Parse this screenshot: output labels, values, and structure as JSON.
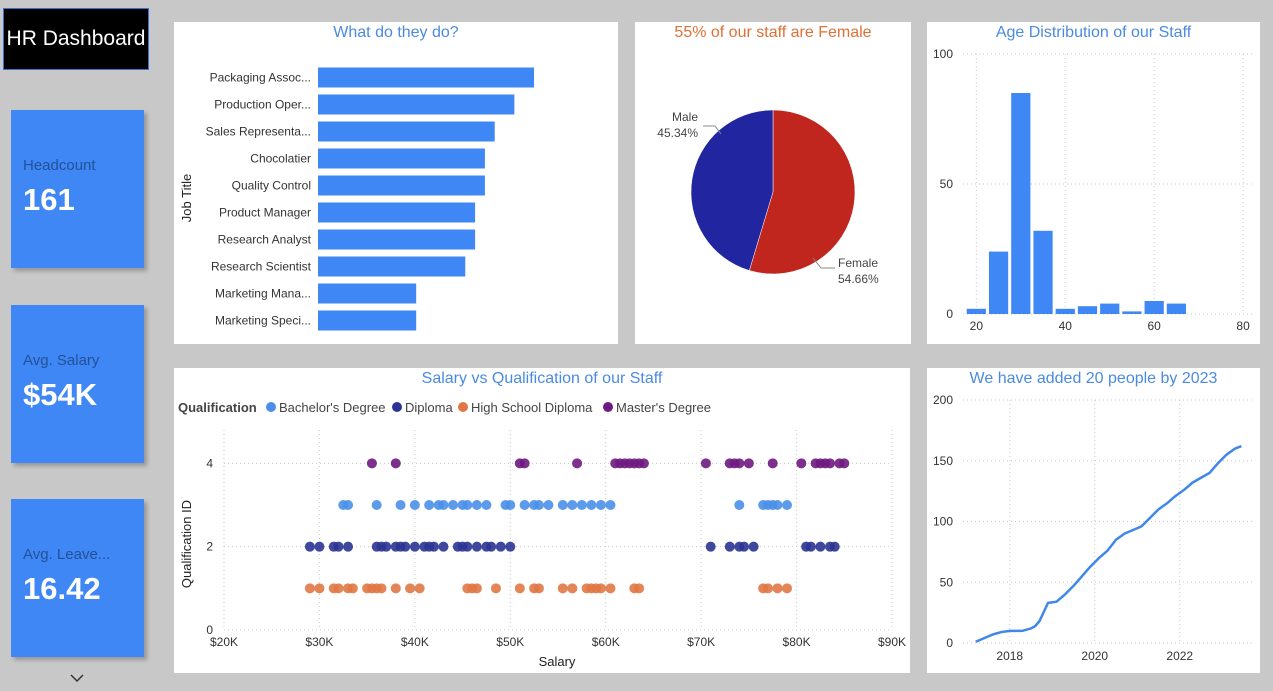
{
  "dashboard_title": "HR Dashboard",
  "kpis": [
    {
      "label": "Headcount",
      "value": "161"
    },
    {
      "label": "Avg. Salary",
      "value": "$54K"
    },
    {
      "label": "Avg. Leave...",
      "value": "16.42"
    }
  ],
  "colors": {
    "accent": "#3f87f5",
    "female": "#c0251e",
    "male": "#2126a0",
    "bachelor": "#4a90e8",
    "diploma": "#2b3494",
    "highschool": "#e07845",
    "master": "#6f1a80"
  },
  "chart_data": [
    {
      "type": "bar",
      "orientation": "horizontal",
      "title": "What do they do?",
      "ylabel": "Job Title",
      "categories": [
        "Packaging Assoc...",
        "Production Oper...",
        "Sales Representa...",
        "Chocolatier",
        "Quality Control",
        "Product Manager",
        "Research Analyst",
        "Research Scientist",
        "Marketing Mana...",
        "Marketing Speci..."
      ],
      "values": [
        22,
        20,
        18,
        17,
        17,
        16,
        16,
        15,
        10,
        10
      ],
      "xlim": [
        0,
        22
      ]
    },
    {
      "type": "pie",
      "title": "55% of our staff are Female",
      "slices": [
        {
          "label": "Female",
          "value": 54.66,
          "pct_label": "54.66%"
        },
        {
          "label": "Male",
          "value": 45.34,
          "pct_label": "45.34%"
        }
      ]
    },
    {
      "type": "bar",
      "title": "Age Distribution of our Staff",
      "x": [
        20,
        25,
        30,
        35,
        40,
        45,
        50,
        55,
        60,
        65
      ],
      "values": [
        2,
        24,
        85,
        32,
        2,
        3,
        4,
        1,
        5,
        4
      ],
      "bin_width": 5,
      "xlim": [
        17,
        82
      ],
      "ylim": [
        0,
        100
      ],
      "xticks": [
        "20",
        "40",
        "60",
        "80"
      ],
      "yticks": [
        "0",
        "50",
        "100"
      ]
    },
    {
      "type": "scatter",
      "title": "Salary vs Qualification of our Staff",
      "xlabel": "Salary",
      "ylabel": "Qualification ID",
      "legend_title": "Qualification",
      "xticks": [
        "$20K",
        "$30K",
        "$40K",
        "$50K",
        "$60K",
        "$70K",
        "$80K",
        "$90K"
      ],
      "yticks": [
        "0",
        "2",
        "4"
      ],
      "xlim": [
        20000,
        90000
      ],
      "ylim": [
        0,
        4.8
      ],
      "series": [
        {
          "name": "Bachelor's Degree",
          "y": 3,
          "x": [
            32500,
            33000,
            36000,
            38500,
            40000,
            41500,
            42500,
            43000,
            44000,
            45000,
            45500,
            46500,
            47500,
            49500,
            50000,
            51500,
            52500,
            53000,
            54000,
            55500,
            56500,
            57500,
            58500,
            59500,
            60500,
            74000,
            76500,
            77000,
            77500,
            78000,
            79000
          ]
        },
        {
          "name": "Diploma",
          "y": 2,
          "x": [
            29000,
            30000,
            31500,
            32000,
            33000,
            36000,
            36500,
            37000,
            38000,
            38500,
            39000,
            40000,
            41000,
            41500,
            42000,
            43000,
            44500,
            45000,
            45500,
            46500,
            47500,
            48000,
            49000,
            50000,
            71000,
            73000,
            74000,
            74500,
            75500,
            81000,
            81500,
            82500,
            83500,
            84000
          ]
        },
        {
          "name": "High School Diploma",
          "y": 1,
          "x": [
            29000,
            30000,
            31500,
            32000,
            33000,
            33500,
            35000,
            35500,
            36000,
            36500,
            38000,
            39500,
            40500,
            45500,
            46000,
            46500,
            48500,
            51000,
            52500,
            53000,
            55500,
            56500,
            58000,
            58500,
            59000,
            59500,
            60500,
            63000,
            63500,
            76500,
            77000,
            78000,
            79000
          ]
        },
        {
          "name": "Master's Degree",
          "y": 4,
          "x": [
            35500,
            38000,
            51000,
            51500,
            57000,
            61000,
            61500,
            62000,
            62500,
            63000,
            63500,
            64000,
            70500,
            73000,
            73500,
            74000,
            75000,
            77500,
            80500,
            82000,
            82500,
            83000,
            83500,
            84500,
            85000
          ]
        }
      ]
    },
    {
      "type": "line",
      "title": "We have added 20 people by 2023",
      "xlim": [
        2016.9,
        2023.7
      ],
      "ylim": [
        0,
        200
      ],
      "xticks": [
        "2018",
        "2020",
        "2022"
      ],
      "yticks": [
        "0",
        "50",
        "100",
        "150",
        "200"
      ],
      "x": [
        2017.2,
        2017.4,
        2017.6,
        2017.8,
        2018.0,
        2018.3,
        2018.5,
        2018.6,
        2018.7,
        2018.9,
        2019.1,
        2019.3,
        2019.5,
        2019.7,
        2019.9,
        2020.1,
        2020.3,
        2020.5,
        2020.7,
        2020.9,
        2021.1,
        2021.3,
        2021.5,
        2021.7,
        2021.9,
        2022.1,
        2022.3,
        2022.5,
        2022.7,
        2022.9,
        2023.1,
        2023.3,
        2023.45
      ],
      "y": [
        1,
        4,
        7,
        9,
        10,
        10,
        12,
        14,
        18,
        33,
        34,
        40,
        47,
        55,
        63,
        70,
        76,
        85,
        90,
        93,
        96,
        103,
        110,
        115,
        121,
        126,
        132,
        136,
        140,
        148,
        155,
        160,
        162
      ]
    }
  ]
}
